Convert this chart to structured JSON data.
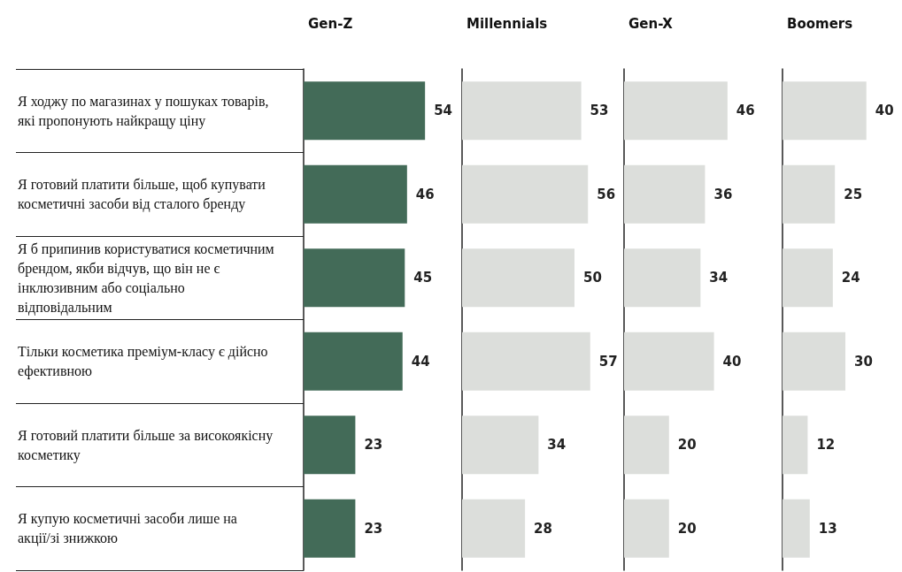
{
  "chart_data": [
    {
      "type": "bar",
      "orientation": "horizontal",
      "title": "Gen-Z",
      "categories": [
        "Я ходжу по магазинах у пошуках товарів, які пропонують найкращу ціну",
        "Я готовий платити більше, щоб купувати косметичні засоби від сталого бренду",
        "Я б припинив користуватися косметичним брендом, якби відчув, що він не є інклюзивним або соціально відповідальним",
        "Тільки косметика преміум-класу є дійсно ефективною",
        "Я готовий платити більше за високоякісну косметику",
        "Я купую косметичні засоби лише на акції/зі знижкою"
      ],
      "values": [
        54,
        46,
        45,
        44,
        23,
        23
      ],
      "color": "#436b58",
      "data_labels": true,
      "tick_labels": "y"
    },
    {
      "type": "bar",
      "orientation": "horizontal",
      "title": "Millennials",
      "values": [
        53,
        56,
        50,
        57,
        34,
        28
      ],
      "color": "#dcdedb",
      "data_labels": true,
      "tick_labels": false
    },
    {
      "type": "bar",
      "orientation": "horizontal",
      "title": "Gen-X",
      "values": [
        46,
        36,
        34,
        40,
        20,
        20
      ],
      "color": "#dcdedb",
      "data_labels": true,
      "tick_labels": false
    },
    {
      "type": "bar",
      "orientation": "horizontal",
      "title": "Boomers",
      "values": [
        40,
        25,
        24,
        30,
        12,
        13
      ],
      "color": "#dcdedb",
      "data_labels": true,
      "tick_labels": false
    }
  ]
}
